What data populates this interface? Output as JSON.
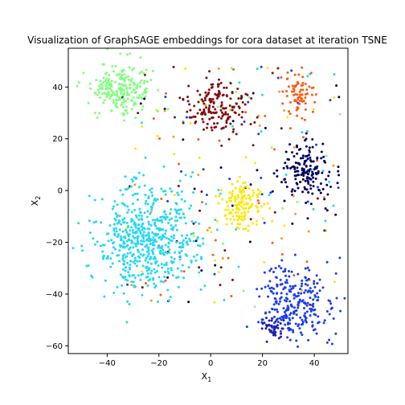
{
  "chart_data": {
    "type": "scatter",
    "title": "Visualization of GraphSAGE embeddings for cora dataset at iteration TSNE",
    "xlabel": "X",
    "xlabel_sub": "1",
    "ylabel": "X",
    "ylabel_sub": "2",
    "xlim": [
      -55,
      53
    ],
    "ylim": [
      -63,
      55
    ],
    "xticks": [
      -40,
      -20,
      0,
      20,
      40
    ],
    "yticks": [
      -60,
      -40,
      -20,
      0,
      20,
      40
    ],
    "grid": false,
    "legend": "none",
    "marker_size_px": 2.4,
    "seed": 1337,
    "clusters": [
      {
        "color": "#80ff7f",
        "center": [
          -35,
          39
        ],
        "spread": [
          6,
          5
        ],
        "count": 220
      },
      {
        "color": "#ff5a14",
        "center": [
          34,
          37
        ],
        "spread": [
          3,
          4
        ],
        "count": 75
      },
      {
        "color": "#7f0f0f",
        "center": [
          2,
          32
        ],
        "spread": [
          6,
          5
        ],
        "count": 160
      },
      {
        "color": "#00005e",
        "center": [
          37,
          7
        ],
        "spread": [
          5,
          6
        ],
        "count": 160
      },
      {
        "color": "#ffe600",
        "center": [
          12,
          -5
        ],
        "spread": [
          4,
          5
        ],
        "count": 140
      },
      {
        "color": "#22d8f5",
        "center": [
          -25,
          -18
        ],
        "spread": [
          10,
          10
        ],
        "count": 580
      },
      {
        "color": "#1c3cf0",
        "center": [
          33,
          -44
        ],
        "spread": [
          7,
          7
        ],
        "count": 270
      },
      {
        "color": "#20209e",
        "center": [
          24,
          -53
        ],
        "spread": [
          2,
          2
        ],
        "count": 40
      }
    ],
    "scatter_noise": {
      "count": 230,
      "x_range": [
        -35,
        50
      ],
      "y_range": [
        -45,
        48
      ],
      "colors": [
        "#7f0f0f",
        "#ff5a14",
        "#22d8f5",
        "#ffe600",
        "#00005e",
        "#1c3cf0",
        "#80ff7f",
        "#ff9b1a"
      ]
    }
  }
}
